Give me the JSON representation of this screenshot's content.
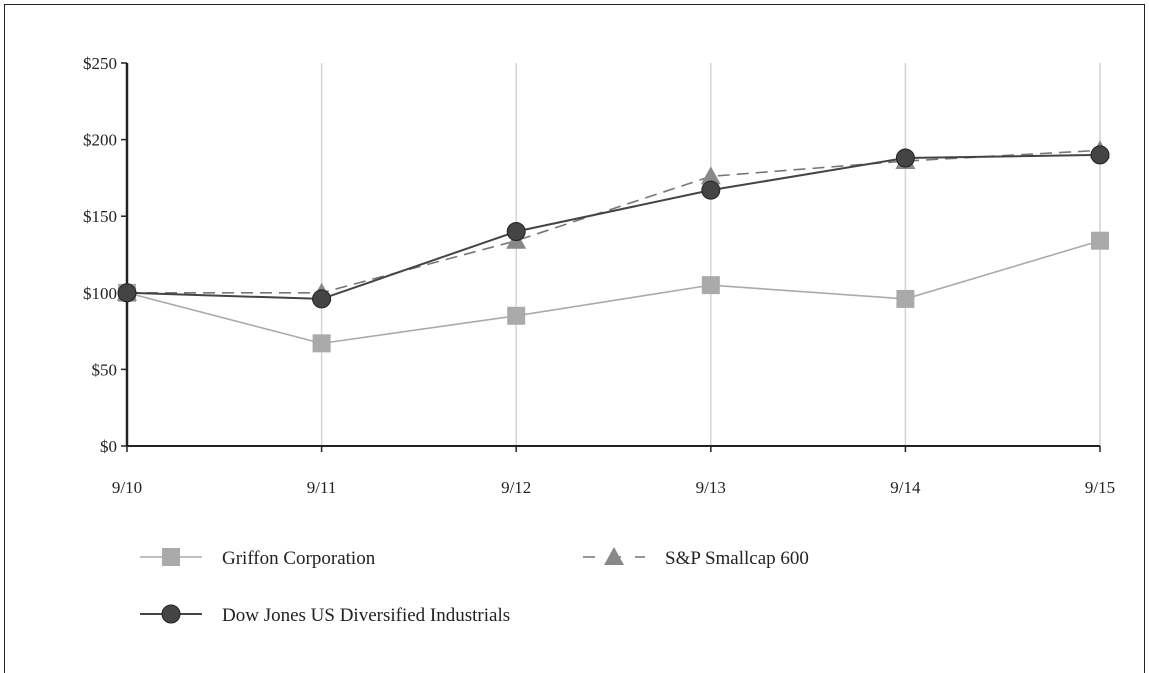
{
  "chart_data": {
    "type": "line",
    "categories": [
      "9/10",
      "9/11",
      "9/12",
      "9/13",
      "9/14",
      "9/15"
    ],
    "y_ticks": [
      "$0",
      "$50",
      "$100",
      "$150",
      "$200",
      "$250"
    ],
    "y_tick_values": [
      0,
      50,
      100,
      150,
      200,
      250
    ],
    "ylim": [
      0,
      250
    ],
    "grid": "vertical",
    "legend_position": "bottom",
    "series": [
      {
        "name": "Griffon Corporation",
        "marker": "square",
        "line": "solid",
        "color": "#aaaaaa",
        "values": [
          100,
          67,
          85,
          105,
          96,
          134
        ]
      },
      {
        "name": "S&P Smallcap 600",
        "marker": "triangle",
        "line": "dashed",
        "color": "#888888",
        "values": [
          100,
          100,
          134,
          176,
          186,
          193
        ]
      },
      {
        "name": "Dow Jones US Diversified Industrials",
        "marker": "circle",
        "line": "solid",
        "color": "#444444",
        "values": [
          100,
          96,
          140,
          167,
          188,
          190
        ]
      }
    ]
  }
}
